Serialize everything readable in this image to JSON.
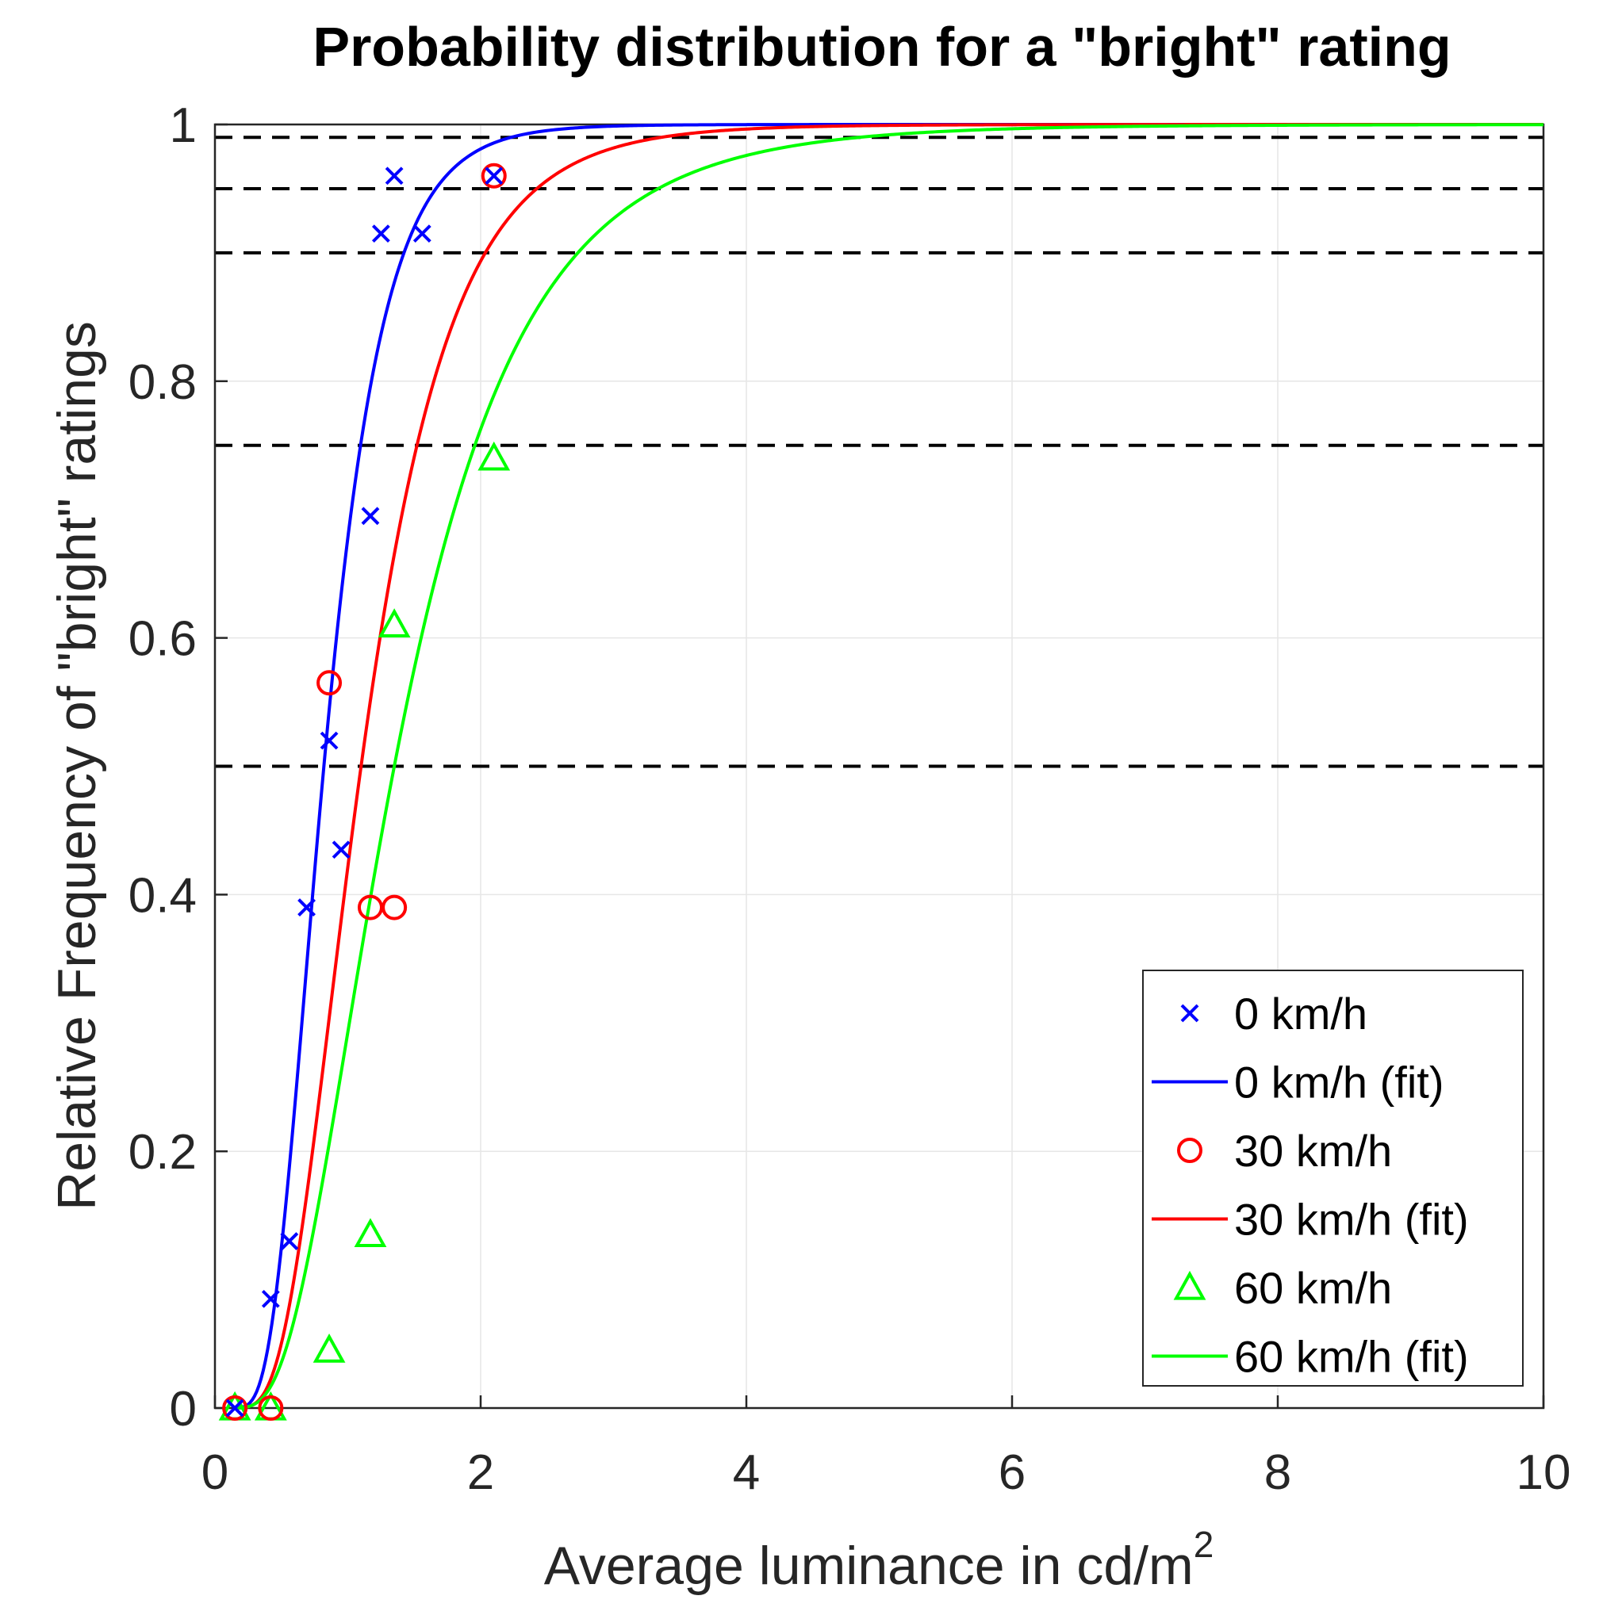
{
  "chart_data": {
    "type": "line",
    "title": "Probability distribution for a \"bright\" rating",
    "xlabel": "Average luminance in cd/m",
    "xlabel_superscript": "2",
    "ylabel": "Relative Frequency of \"bright\" ratings",
    "xlim": [
      0,
      10
    ],
    "ylim": [
      0,
      1
    ],
    "grid": true,
    "legend_position": "bottom-right",
    "x_ticks": [
      0,
      2,
      4,
      6,
      8,
      10
    ],
    "x_tick_labels": [
      "0",
      "2",
      "4",
      "6",
      "8",
      "10"
    ],
    "y_ticks": [
      0,
      0.2,
      0.4,
      0.6,
      0.8,
      1
    ],
    "y_tick_labels": [
      "0",
      "0.2",
      "0.4",
      "0.6",
      "0.8",
      "1"
    ],
    "reference_lines": [
      0.5,
      0.75,
      0.9,
      0.95,
      0.99
    ],
    "series": [
      {
        "name": "0 km/h",
        "kind": "scatter",
        "marker": "x",
        "color": "#0000ff",
        "x": [
          0.15,
          0.42,
          0.56,
          0.69,
          0.86,
          0.95,
          1.17,
          1.25,
          1.35,
          1.56,
          2.1
        ],
        "y": [
          0.0,
          0.085,
          0.13,
          0.39,
          0.52,
          0.435,
          0.695,
          0.915,
          0.96,
          0.915,
          0.96
        ]
      },
      {
        "name": "0 km/h (fit)",
        "kind": "line",
        "color": "#0000ff",
        "median": 0.82,
        "sigma": 0.43
      },
      {
        "name": "30 km/h",
        "kind": "scatter",
        "marker": "o",
        "color": "#ff0000",
        "x": [
          0.15,
          0.42,
          0.86,
          1.17,
          1.35,
          2.1
        ],
        "y": [
          0.0,
          0.0,
          0.565,
          0.39,
          0.39,
          0.96
        ]
      },
      {
        "name": "30 km/h (fit)",
        "kind": "line",
        "color": "#ff0000",
        "median": 1.1,
        "sigma": 0.48
      },
      {
        "name": "60 km/h",
        "kind": "scatter",
        "marker": "triangle",
        "color": "#00ff00",
        "x": [
          0.15,
          0.42,
          0.86,
          1.17,
          1.35,
          2.1
        ],
        "y": [
          0.0,
          0.0,
          0.045,
          0.135,
          0.61,
          0.74
        ]
      },
      {
        "name": "60 km/h (fit)",
        "kind": "line",
        "color": "#00ff00",
        "median": 1.35,
        "sigma": 0.55
      }
    ]
  }
}
